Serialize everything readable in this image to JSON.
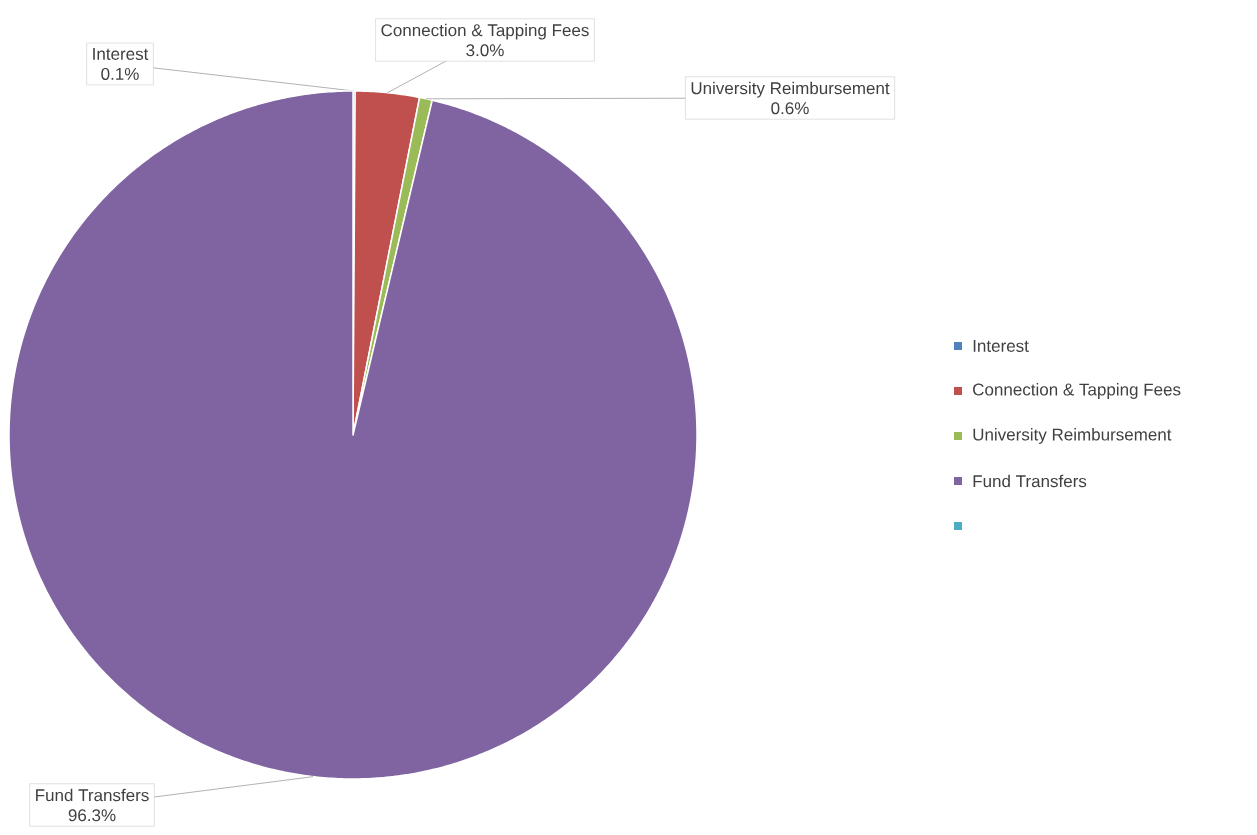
{
  "chart_data": {
    "type": "pie",
    "categories": [
      "Interest",
      "Connection & Tapping Fees",
      "University Reimbursement",
      "Fund Transfers",
      null
    ],
    "values": [
      0.1,
      3.0,
      0.6,
      96.3,
      0
    ],
    "colors": [
      "#4f81bd",
      "#c0504d",
      "#9bbb59",
      "#8064a2",
      "#4bacc6"
    ],
    "value_labels": [
      "0.1%",
      "3.0%",
      "0.6%",
      "96.3%",
      null
    ],
    "legend": "right"
  }
}
